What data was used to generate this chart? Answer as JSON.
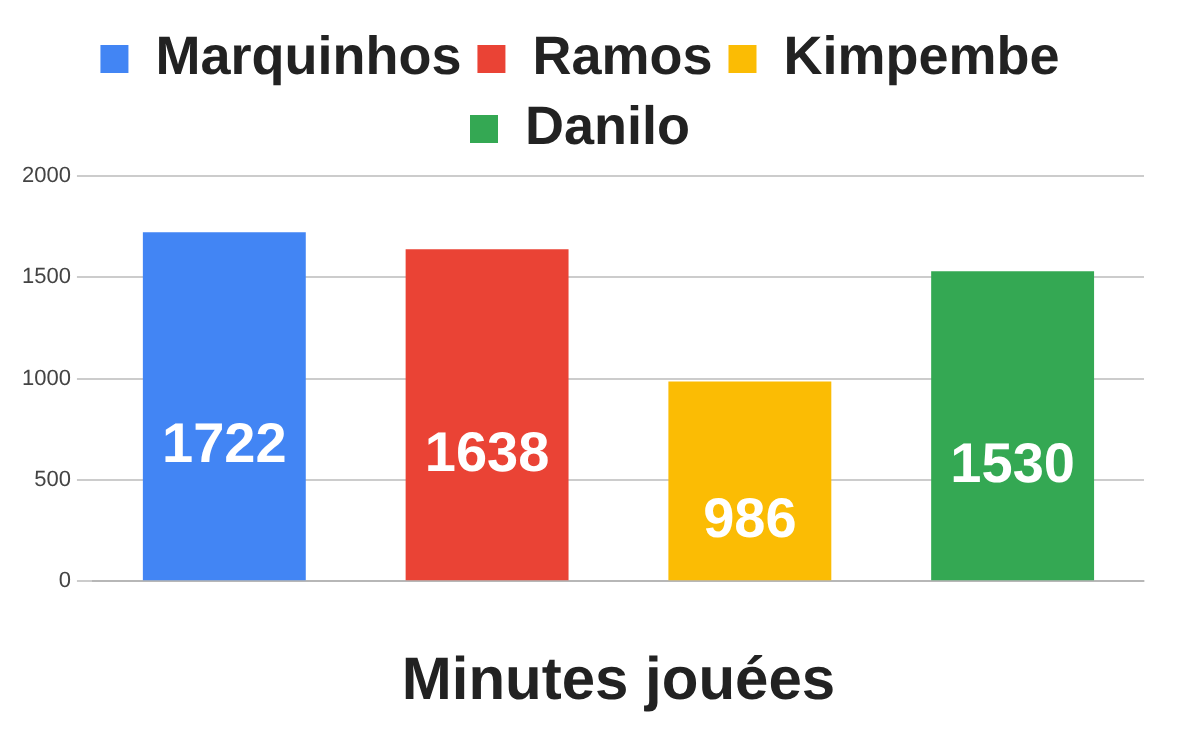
{
  "chart_data": {
    "type": "bar",
    "xlabel": "Minutes jouées",
    "categories": [
      null
    ],
    "series": [
      {
        "name": "Marquinhos",
        "color": "#4285f4",
        "values": [
          1722
        ]
      },
      {
        "name": "Ramos",
        "color": "#ea4335",
        "values": [
          1638
        ]
      },
      {
        "name": "Kimpembe",
        "color": "#fbbc04",
        "values": [
          986
        ]
      },
      {
        "name": "Danilo",
        "color": "#34a853",
        "values": [
          1530
        ]
      }
    ],
    "ylim": [
      0,
      2000
    ],
    "yticks": [
      0,
      500,
      1000,
      1500,
      2000
    ],
    "grid": "y",
    "legend": "top",
    "data_labels": true
  }
}
